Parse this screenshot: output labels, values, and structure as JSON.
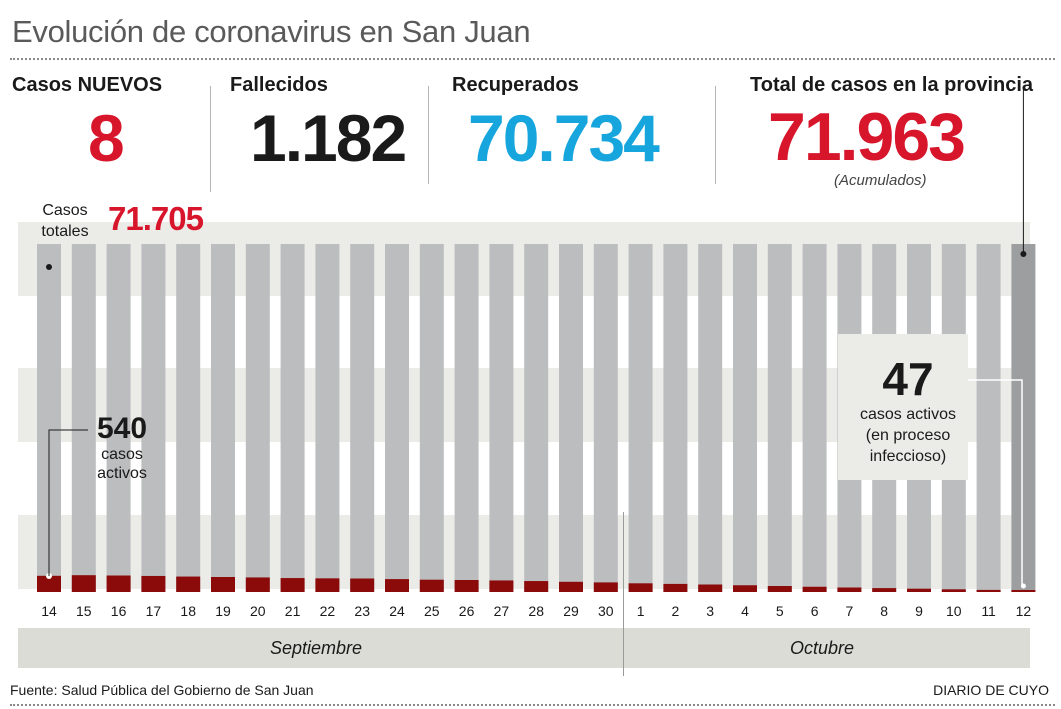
{
  "title": "Evolución de coronavirus en San Juan",
  "stats": {
    "nuevos": {
      "label": "Casos NUEVOS",
      "value": "8"
    },
    "fallecidos": {
      "label": "Fallecidos",
      "value": "1.182"
    },
    "recuperados": {
      "label": "Recuperados",
      "value": "70.734"
    },
    "total": {
      "label": "Total de casos en la provincia",
      "value": "71.963",
      "note": "(Acumulados)"
    }
  },
  "colors": {
    "red": "#d7162c",
    "blue": "#16a6dd",
    "dark": "#1a1a1a",
    "bar_total": "#bcbdbf",
    "bar_total_last": "#9d9ea0",
    "bar_active": "#8b0a0a",
    "band": "#ebebe8"
  },
  "annotations": {
    "casos_totales_label_1": "Casos",
    "casos_totales_label_2": "totales",
    "casos_totales_value": "71.705",
    "start_active_value": "540",
    "start_active_text_1": "casos",
    "start_active_text_2": "activos",
    "end_active_value": "47",
    "end_active_text_1": "casos activos",
    "end_active_text_2": "(en proceso",
    "end_active_text_3": "infeccioso)"
  },
  "chart_data": {
    "type": "bar",
    "categories": [
      "14",
      "15",
      "16",
      "17",
      "18",
      "19",
      "20",
      "21",
      "22",
      "23",
      "24",
      "25",
      "26",
      "27",
      "28",
      "29",
      "30",
      "1",
      "2",
      "3",
      "4",
      "5",
      "6",
      "7",
      "8",
      "9",
      "10",
      "11",
      "12"
    ],
    "series": [
      {
        "values": [
          71705,
          71740,
          71775,
          71800,
          71825,
          71845,
          71862,
          71875,
          71885,
          71893,
          71900,
          71906,
          71912,
          71918,
          71923,
          71928,
          71932,
          71936,
          71940,
          71943,
          71946,
          71949,
          71952,
          71954,
          71956,
          71958,
          71960,
          71962,
          71963
        ]
      },
      {
        "values": [
          540,
          560,
          550,
          535,
          515,
          500,
          485,
          465,
          455,
          450,
          430,
          410,
          400,
          385,
          365,
          340,
          320,
          290,
          270,
          250,
          225,
          200,
          175,
          150,
          130,
          110,
          90,
          70,
          47
        ]
      }
    ],
    "months": [
      {
        "label": "Septiembre",
        "from": "14",
        "to": "30"
      },
      {
        "label": "Octubre",
        "from": "1",
        "to": "12"
      }
    ]
  },
  "source": "Fuente: Salud Pública del Gobierno de San Juan",
  "publisher": "DIARIO DE CUYO"
}
